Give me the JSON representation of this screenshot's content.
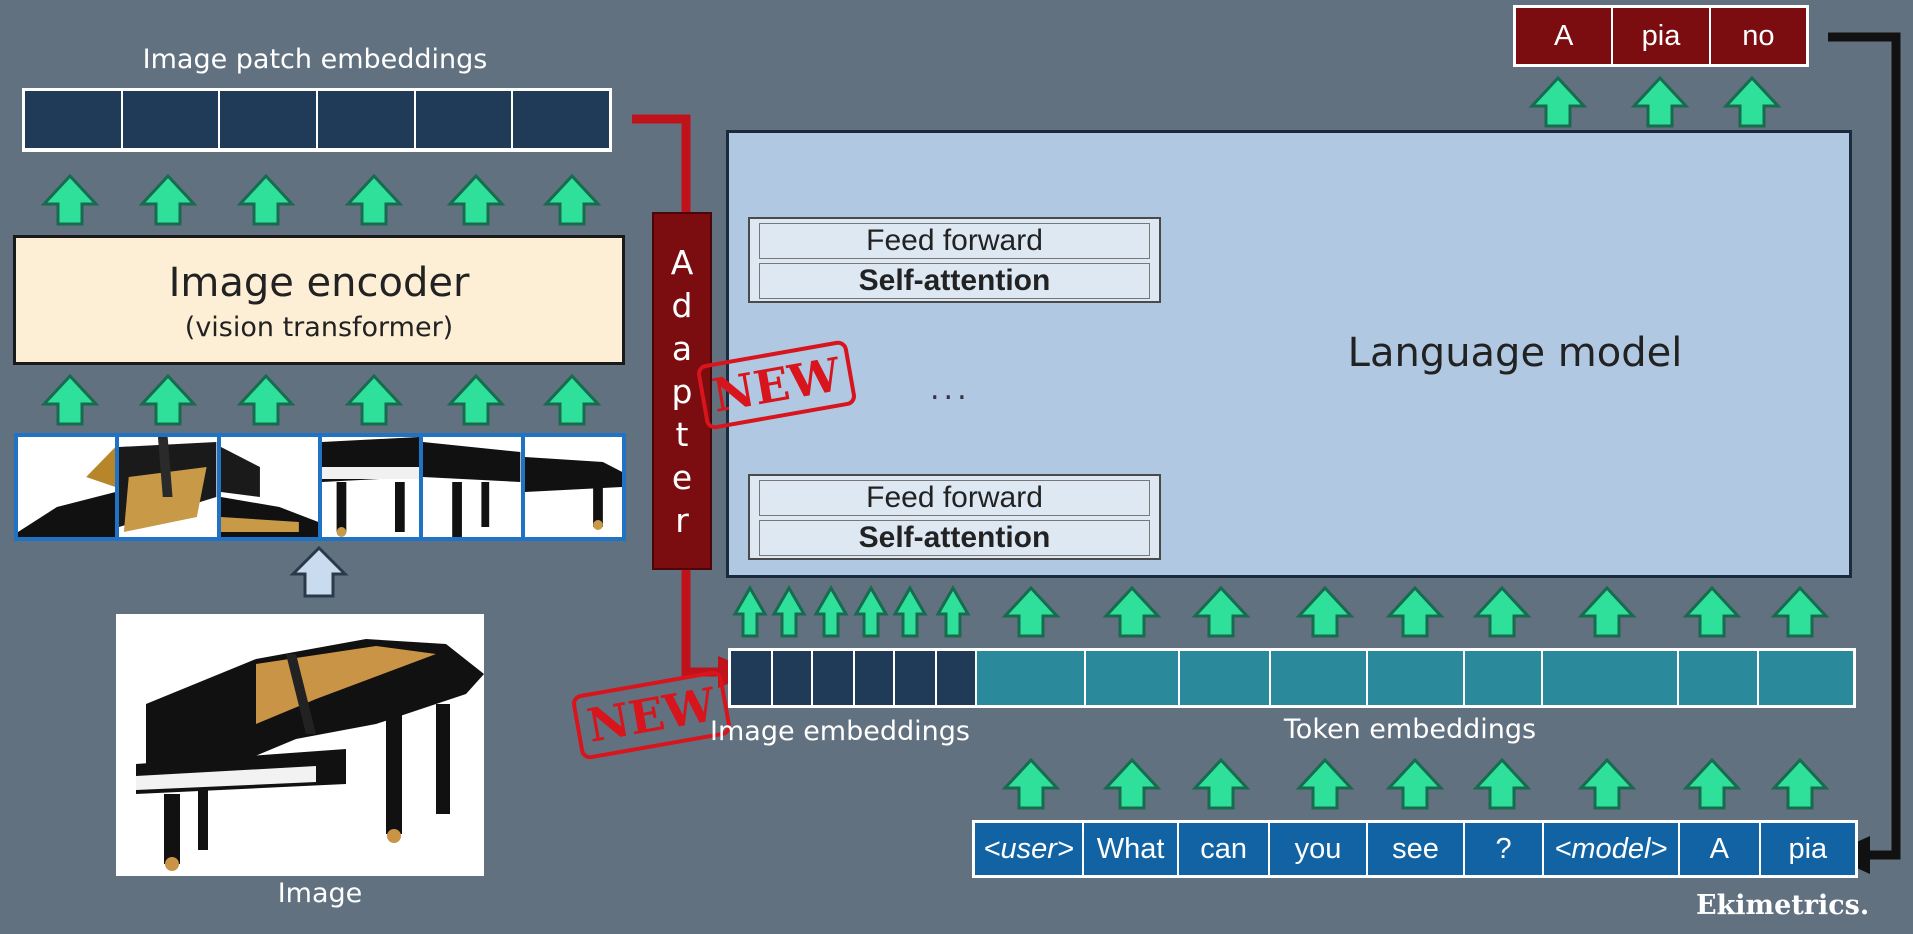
{
  "labels": {
    "patch_embeddings": "Image patch embeddings",
    "image_encoder_title": "Image encoder",
    "image_encoder_subtitle": "(vision transformer)",
    "image": "Image",
    "adapter": [
      "A",
      "d",
      "a",
      "p",
      "t",
      "e",
      "r"
    ],
    "language_model": "Language model",
    "feed_forward": "Feed forward",
    "self_attention": "Self-attention",
    "ellipsis": "...",
    "image_embeddings": "Image embeddings",
    "token_embeddings": "Token embeddings",
    "new_stamp_1": "NEW",
    "new_stamp_2": "NEW",
    "brand": "Ekimetrics."
  },
  "input_tokens": [
    "<user>",
    "What",
    "can",
    "you",
    "see",
    "?",
    "<model>",
    "A",
    "pia"
  ],
  "output_tokens": [
    "A",
    "pia",
    "no"
  ],
  "colors": {
    "background": "#627180",
    "embedding_dark": "#1f3b58",
    "token_embedding": "#2a8a9c",
    "token_box": "#1263a3",
    "output_box": "#7b0c10",
    "arrow_green": "#2fe09b",
    "adapter_red": "#c0121a"
  }
}
